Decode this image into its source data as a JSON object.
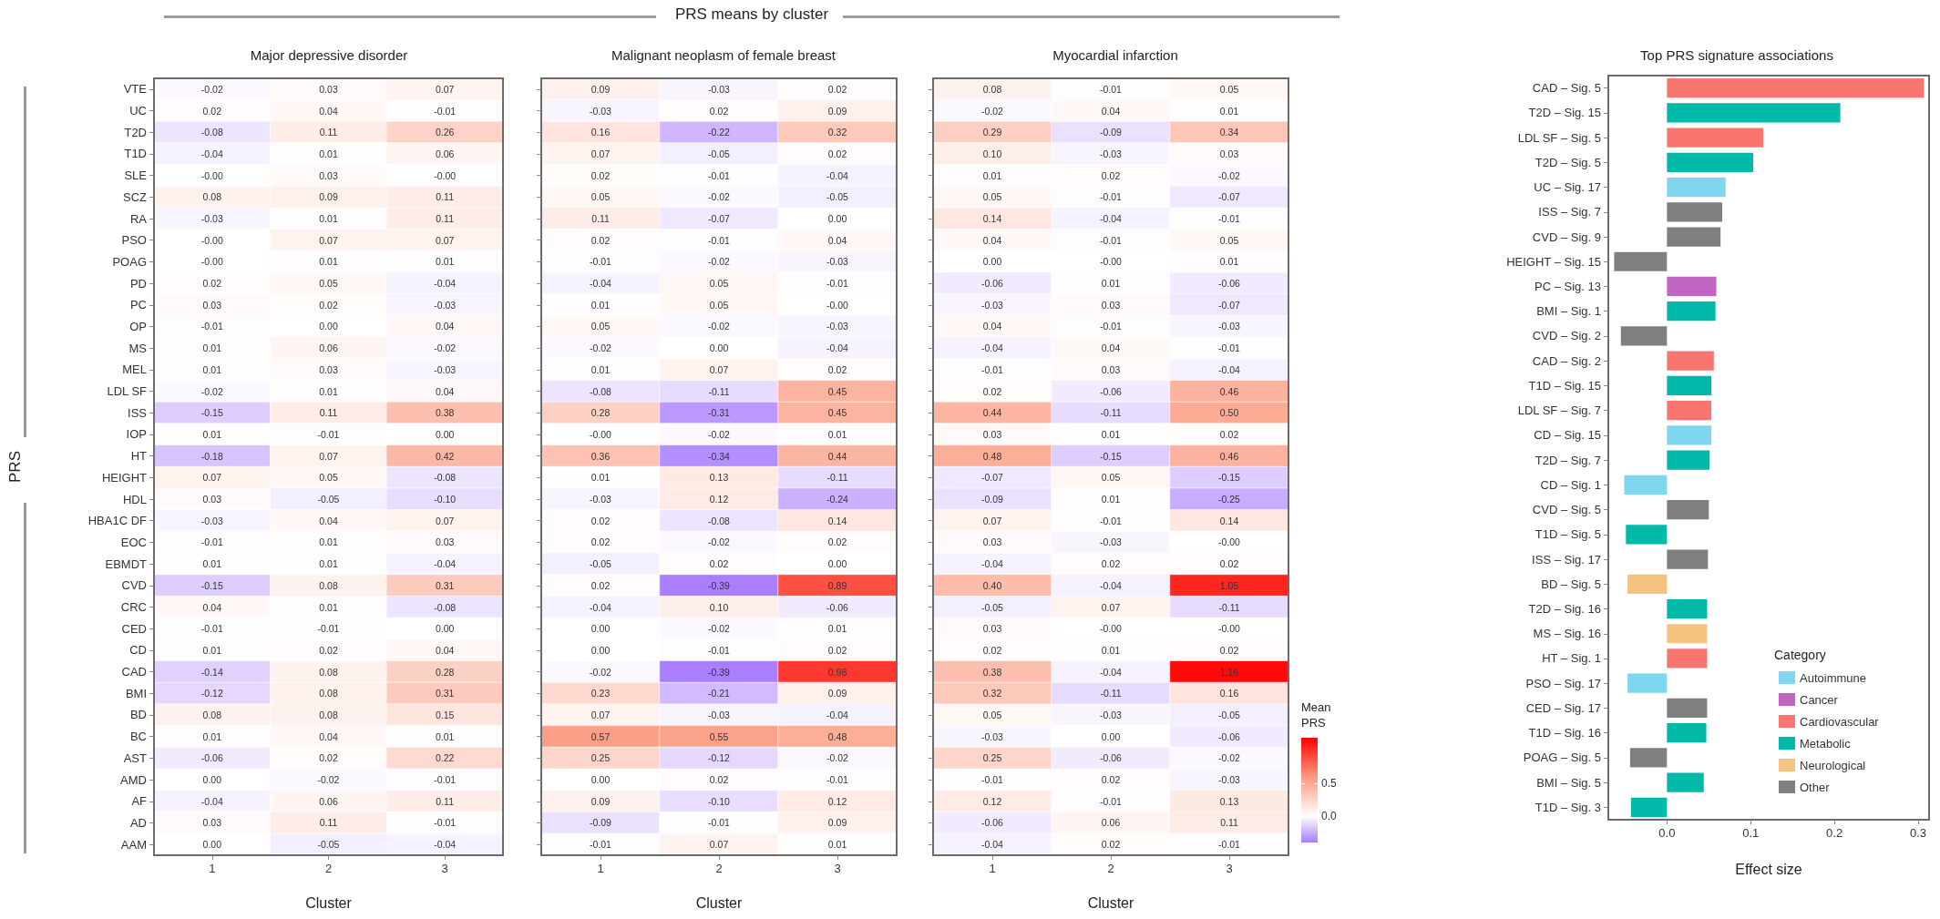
{
  "chart_data": [
    {
      "type": "heatmap",
      "title": "Major depressive disorder",
      "xlabel": "Cluster",
      "ylabel": "PRS",
      "annotations": [
        "PRS means by cluster"
      ],
      "data_labels": true,
      "categories": [
        "1",
        "2",
        "3"
      ],
      "y_categories": [
        "VTE",
        "UC",
        "T2D",
        "T1D",
        "SLE",
        "SCZ",
        "RA",
        "PSO",
        "POAG",
        "PD",
        "PC",
        "OP",
        "MS",
        "MEL",
        "LDL SF",
        "ISS",
        "IOP",
        "HT",
        "HEIGHT",
        "HDL",
        "HBA1C DF",
        "EOC",
        "EBMDT",
        "CVD",
        "CRC",
        "CED",
        "CD",
        "CAD",
        "BMI",
        "BD",
        "BC",
        "AST",
        "AMD",
        "AF",
        "AD",
        "AAM"
      ],
      "cells": [
        [
          -0.02,
          0.03,
          0.07
        ],
        [
          0.02,
          0.04,
          -0.01
        ],
        [
          -0.08,
          0.11,
          0.26
        ],
        [
          -0.04,
          0.01,
          0.06
        ],
        [
          0,
          0.03,
          0
        ],
        [
          0.08,
          0.09,
          0.11
        ],
        [
          -0.03,
          0.01,
          0.11
        ],
        [
          0,
          0.07,
          0.07
        ],
        [
          0,
          0.01,
          0.01
        ],
        [
          0.02,
          0.05,
          -0.04
        ],
        [
          0.03,
          0.02,
          -0.03
        ],
        [
          -0.01,
          0.0,
          0.04
        ],
        [
          0.01,
          0.06,
          -0.02
        ],
        [
          0.01,
          0.03,
          -0.03
        ],
        [
          -0.02,
          0.01,
          0.04
        ],
        [
          -0.15,
          0.11,
          0.38
        ],
        [
          0.01,
          -0.01,
          0.0
        ],
        [
          -0.18,
          0.07,
          0.42
        ],
        [
          0.07,
          0.05,
          -0.08
        ],
        [
          0.03,
          -0.05,
          -0.1
        ],
        [
          -0.03,
          0.04,
          0.07
        ],
        [
          -0.01,
          0.01,
          0.03
        ],
        [
          0.01,
          0.01,
          -0.04
        ],
        [
          -0.15,
          0.08,
          0.31
        ],
        [
          0.04,
          0.01,
          -0.08
        ],
        [
          -0.01,
          -0.01,
          0.0
        ],
        [
          0.01,
          0.02,
          0.04
        ],
        [
          -0.14,
          0.08,
          0.28
        ],
        [
          -0.12,
          0.08,
          0.31
        ],
        [
          0.08,
          0.08,
          0.15
        ],
        [
          0.01,
          0.04,
          0.01
        ],
        [
          -0.06,
          0.02,
          0.22
        ],
        [
          0.0,
          -0.02,
          -0.01
        ],
        [
          -0.04,
          0.06,
          0.11
        ],
        [
          0.03,
          0.11,
          -0.01
        ],
        [
          0.0,
          -0.05,
          -0.04
        ]
      ],
      "cell_labels": [
        [
          "-0.02",
          "0.03",
          "0.07"
        ],
        [
          "0.02",
          "0.04",
          "-0.01"
        ],
        [
          "-0.08",
          "0.11",
          "0.26"
        ],
        [
          "-0.04",
          "0.01",
          "0.06"
        ],
        [
          "-0.00",
          "0.03",
          "-0.00"
        ],
        [
          "0.08",
          "0.09",
          "0.11"
        ],
        [
          "-0.03",
          "0.01",
          "0.11"
        ],
        [
          "-0.00",
          "0.07",
          "0.07"
        ],
        [
          "-0.00",
          "0.01",
          "0.01"
        ],
        [
          "0.02",
          "0.05",
          "-0.04"
        ],
        [
          "0.03",
          "0.02",
          "-0.03"
        ],
        [
          "-0.01",
          "0.00",
          "0.04"
        ],
        [
          "0.01",
          "0.06",
          "-0.02"
        ],
        [
          "0.01",
          "0.03",
          "-0.03"
        ],
        [
          "-0.02",
          "0.01",
          "0.04"
        ],
        [
          "-0.15",
          "0.11",
          "0.38"
        ],
        [
          "0.01",
          "-0.01",
          "0.00"
        ],
        [
          "-0.18",
          "0.07",
          "0.42"
        ],
        [
          "0.07",
          "0.05",
          "-0.08"
        ],
        [
          "0.03",
          "-0.05",
          "-0.10"
        ],
        [
          "-0.03",
          "0.04",
          "0.07"
        ],
        [
          "-0.01",
          "0.01",
          "0.03"
        ],
        [
          "0.01",
          "0.01",
          "-0.04"
        ],
        [
          "-0.15",
          "0.08",
          "0.31"
        ],
        [
          "0.04",
          "0.01",
          "-0.08"
        ],
        [
          "-0.01",
          "-0.01",
          "0.00"
        ],
        [
          "0.01",
          "0.02",
          "0.04"
        ],
        [
          "-0.14",
          "0.08",
          "0.28"
        ],
        [
          "-0.12",
          "0.08",
          "0.31"
        ],
        [
          "0.08",
          "0.08",
          "0.15"
        ],
        [
          "0.01",
          "0.04",
          "0.01"
        ],
        [
          "-0.06",
          "0.02",
          "0.22"
        ],
        [
          "0.00",
          "-0.02",
          "-0.01"
        ],
        [
          "-0.04",
          "0.06",
          "0.11"
        ],
        [
          "0.03",
          "0.11",
          "-0.01"
        ],
        [
          "0.00",
          "-0.05",
          "-0.04"
        ]
      ]
    },
    {
      "type": "heatmap",
      "title": "Malignant neoplasm of female breast",
      "xlabel": "Cluster",
      "data_labels": true,
      "tick_labels": "x",
      "categories": [
        "1",
        "2",
        "3"
      ],
      "y_categories": [
        "VTE",
        "UC",
        "T2D",
        "T1D",
        "SLE",
        "SCZ",
        "RA",
        "PSO",
        "POAG",
        "PD",
        "PC",
        "OP",
        "MS",
        "MEL",
        "LDL SF",
        "ISS",
        "IOP",
        "HT",
        "HEIGHT",
        "HDL",
        "HBA1C DF",
        "EOC",
        "EBMDT",
        "CVD",
        "CRC",
        "CED",
        "CD",
        "CAD",
        "BMI",
        "BD",
        "BC",
        "AST",
        "AMD",
        "AF",
        "AD",
        "AAM"
      ],
      "cells": [
        [
          0.09,
          -0.03,
          0.02
        ],
        [
          -0.03,
          0.02,
          0.09
        ],
        [
          0.16,
          -0.22,
          0.32
        ],
        [
          0.07,
          -0.05,
          0.02
        ],
        [
          0.02,
          -0.01,
          -0.04
        ],
        [
          0.05,
          -0.02,
          -0.05
        ],
        [
          0.11,
          -0.07,
          0.0
        ],
        [
          0.02,
          -0.01,
          0.04
        ],
        [
          -0.01,
          -0.02,
          -0.03
        ],
        [
          -0.04,
          0.05,
          -0.01
        ],
        [
          0.01,
          0.05,
          0
        ],
        [
          0.05,
          -0.02,
          -0.03
        ],
        [
          -0.02,
          0.0,
          -0.04
        ],
        [
          0.01,
          0.07,
          0.02
        ],
        [
          -0.08,
          -0.11,
          0.45
        ],
        [
          0.28,
          -0.31,
          0.45
        ],
        [
          0,
          -0.02,
          0.01
        ],
        [
          0.36,
          -0.34,
          0.44
        ],
        [
          0.01,
          0.13,
          -0.11
        ],
        [
          -0.03,
          0.12,
          -0.24
        ],
        [
          0.02,
          -0.08,
          0.14
        ],
        [
          0.02,
          -0.02,
          0.02
        ],
        [
          -0.05,
          0.02,
          0.0
        ],
        [
          0.02,
          -0.39,
          0.89
        ],
        [
          -0.04,
          0.1,
          -0.06
        ],
        [
          0.0,
          -0.02,
          0.01
        ],
        [
          0.0,
          -0.01,
          0.02
        ],
        [
          -0.02,
          -0.39,
          0.98
        ],
        [
          0.23,
          -0.21,
          0.09
        ],
        [
          0.07,
          -0.03,
          -0.04
        ],
        [
          0.57,
          0.55,
          0.48
        ],
        [
          0.25,
          -0.12,
          -0.02
        ],
        [
          0.0,
          0.02,
          -0.01
        ],
        [
          0.09,
          -0.1,
          0.12
        ],
        [
          -0.09,
          -0.01,
          0.09
        ],
        [
          -0.01,
          0.07,
          0.01
        ]
      ],
      "cell_labels": [
        [
          "0.09",
          "-0.03",
          "0.02"
        ],
        [
          "-0.03",
          "0.02",
          "0.09"
        ],
        [
          "0.16",
          "-0.22",
          "0.32"
        ],
        [
          "0.07",
          "-0.05",
          "0.02"
        ],
        [
          "0.02",
          "-0.01",
          "-0.04"
        ],
        [
          "0.05",
          "-0.02",
          "-0.05"
        ],
        [
          "0.11",
          "-0.07",
          "0.00"
        ],
        [
          "0.02",
          "-0.01",
          "0.04"
        ],
        [
          "-0.01",
          "-0.02",
          "-0.03"
        ],
        [
          "-0.04",
          "0.05",
          "-0.01"
        ],
        [
          "0.01",
          "0.05",
          "-0.00"
        ],
        [
          "0.05",
          "-0.02",
          "-0.03"
        ],
        [
          "-0.02",
          "0.00",
          "-0.04"
        ],
        [
          "0.01",
          "0.07",
          "0.02"
        ],
        [
          "-0.08",
          "-0.11",
          "0.45"
        ],
        [
          "0.28",
          "-0.31",
          "0.45"
        ],
        [
          "-0.00",
          "-0.02",
          "0.01"
        ],
        [
          "0.36",
          "-0.34",
          "0.44"
        ],
        [
          "0.01",
          "0.13",
          "-0.11"
        ],
        [
          "-0.03",
          "0.12",
          "-0.24"
        ],
        [
          "0.02",
          "-0.08",
          "0.14"
        ],
        [
          "0.02",
          "-0.02",
          "0.02"
        ],
        [
          "-0.05",
          "0.02",
          "0.00"
        ],
        [
          "0.02",
          "-0.39",
          "0.89"
        ],
        [
          "-0.04",
          "0.10",
          "-0.06"
        ],
        [
          "0.00",
          "-0.02",
          "0.01"
        ],
        [
          "0.00",
          "-0.01",
          "0.02"
        ],
        [
          "-0.02",
          "-0.39",
          "0.98"
        ],
        [
          "0.23",
          "-0.21",
          "0.09"
        ],
        [
          "0.07",
          "-0.03",
          "-0.04"
        ],
        [
          "0.57",
          "0.55",
          "0.48"
        ],
        [
          "0.25",
          "-0.12",
          "-0.02"
        ],
        [
          "0.00",
          "0.02",
          "-0.01"
        ],
        [
          "0.09",
          "-0.10",
          "0.12"
        ],
        [
          "-0.09",
          "-0.01",
          "0.09"
        ],
        [
          "-0.01",
          "0.07",
          "0.01"
        ]
      ]
    },
    {
      "type": "heatmap",
      "title": "Myocardial infarction",
      "xlabel": "Cluster",
      "data_labels": true,
      "tick_labels": "x",
      "clabel": "Mean PRS",
      "clim": [
        -0.4,
        1.2
      ],
      "cticks": [
        {
          "value": 0,
          "label": "0.0"
        },
        {
          "value": 0.5,
          "label": "0.5"
        }
      ],
      "categories": [
        "1",
        "2",
        "3"
      ],
      "y_categories": [
        "VTE",
        "UC",
        "T2D",
        "T1D",
        "SLE",
        "SCZ",
        "RA",
        "PSO",
        "POAG",
        "PD",
        "PC",
        "OP",
        "MS",
        "MEL",
        "LDL SF",
        "ISS",
        "IOP",
        "HT",
        "HEIGHT",
        "HDL",
        "HBA1C DF",
        "EOC",
        "EBMDT",
        "CVD",
        "CRC",
        "CED",
        "CD",
        "CAD",
        "BMI",
        "BD",
        "BC",
        "AST",
        "AMD",
        "AF",
        "AD",
        "AAM"
      ],
      "cells": [
        [
          0.08,
          -0.01,
          0.05
        ],
        [
          -0.02,
          0.04,
          0.01
        ],
        [
          0.29,
          -0.09,
          0.34
        ],
        [
          0.1,
          -0.03,
          0.03
        ],
        [
          0.01,
          0.02,
          -0.02
        ],
        [
          0.05,
          -0.01,
          -0.07
        ],
        [
          0.14,
          -0.04,
          -0.01
        ],
        [
          0.04,
          -0.01,
          0.05
        ],
        [
          0.0,
          0,
          0.01
        ],
        [
          -0.06,
          0.01,
          -0.06
        ],
        [
          -0.03,
          0.03,
          -0.07
        ],
        [
          0.04,
          -0.01,
          -0.03
        ],
        [
          -0.04,
          0.04,
          -0.01
        ],
        [
          -0.01,
          0.03,
          -0.04
        ],
        [
          0.02,
          -0.06,
          0.46
        ],
        [
          0.44,
          -0.11,
          0.5
        ],
        [
          0.03,
          0.01,
          0.02
        ],
        [
          0.48,
          -0.15,
          0.46
        ],
        [
          -0.07,
          0.05,
          -0.15
        ],
        [
          -0.09,
          0.01,
          -0.25
        ],
        [
          0.07,
          -0.01,
          0.14
        ],
        [
          0.03,
          -0.03,
          0
        ],
        [
          -0.04,
          0.02,
          0.02
        ],
        [
          0.4,
          -0.04,
          1.05
        ],
        [
          -0.05,
          0.07,
          -0.11
        ],
        [
          0.03,
          0,
          0
        ],
        [
          0.02,
          0.01,
          0.02
        ],
        [
          0.38,
          -0.04,
          1.16
        ],
        [
          0.32,
          -0.11,
          0.16
        ],
        [
          0.05,
          -0.03,
          -0.05
        ],
        [
          -0.03,
          0.0,
          -0.06
        ],
        [
          0.25,
          -0.06,
          -0.02
        ],
        [
          -0.01,
          0.02,
          -0.03
        ],
        [
          0.12,
          -0.01,
          0.13
        ],
        [
          -0.06,
          0.06,
          0.11
        ],
        [
          -0.04,
          0.02,
          -0.01
        ]
      ],
      "cell_labels": [
        [
          "0.08",
          "-0.01",
          "0.05"
        ],
        [
          "-0.02",
          "0.04",
          "0.01"
        ],
        [
          "0.29",
          "-0.09",
          "0.34"
        ],
        [
          "0.10",
          "-0.03",
          "0.03"
        ],
        [
          "0.01",
          "0.02",
          "-0.02"
        ],
        [
          "0.05",
          "-0.01",
          "-0.07"
        ],
        [
          "0.14",
          "-0.04",
          "-0.01"
        ],
        [
          "0.04",
          "-0.01",
          "0.05"
        ],
        [
          "0.00",
          "-0.00",
          "0.01"
        ],
        [
          "-0.06",
          "0.01",
          "-0.06"
        ],
        [
          "-0.03",
          "0.03",
          "-0.07"
        ],
        [
          "0.04",
          "-0.01",
          "-0.03"
        ],
        [
          "-0.04",
          "0.04",
          "-0.01"
        ],
        [
          "-0.01",
          "0.03",
          "-0.04"
        ],
        [
          "0.02",
          "-0.06",
          "0.46"
        ],
        [
          "0.44",
          "-0.11",
          "0.50"
        ],
        [
          "0.03",
          "0.01",
          "0.02"
        ],
        [
          "0.48",
          "-0.15",
          "0.46"
        ],
        [
          "-0.07",
          "0.05",
          "-0.15"
        ],
        [
          "-0.09",
          "0.01",
          "-0.25"
        ],
        [
          "0.07",
          "-0.01",
          "0.14"
        ],
        [
          "0.03",
          "-0.03",
          "-0.00"
        ],
        [
          "-0.04",
          "0.02",
          "0.02"
        ],
        [
          "0.40",
          "-0.04",
          "1.05"
        ],
        [
          "-0.05",
          "0.07",
          "-0.11"
        ],
        [
          "0.03",
          "-0.00",
          "-0.00"
        ],
        [
          "0.02",
          "0.01",
          "0.02"
        ],
        [
          "0.38",
          "-0.04",
          "1.16"
        ],
        [
          "0.32",
          "-0.11",
          "0.16"
        ],
        [
          "0.05",
          "-0.03",
          "-0.05"
        ],
        [
          "-0.03",
          "0.00",
          "-0.06"
        ],
        [
          "0.25",
          "-0.06",
          "-0.02"
        ],
        [
          "-0.01",
          "0.02",
          "-0.03"
        ],
        [
          "0.12",
          "-0.01",
          "0.13"
        ],
        [
          "-0.06",
          "0.06",
          "0.11"
        ],
        [
          "-0.04",
          "0.02",
          "-0.01"
        ]
      ]
    },
    {
      "type": "bar",
      "orientation": "horizontal",
      "title": "Top PRS signature associations",
      "xlabel": "Effect size",
      "legend": "bottom right",
      "legend_title": "Category",
      "categories": [
        "CAD – Sig. 5",
        "T2D – Sig. 15",
        "LDL SF – Sig. 5",
        "T2D – Sig. 5",
        "UC – Sig. 17",
        "ISS – Sig. 7",
        "CVD – Sig. 9",
        "HEIGHT – Sig. 15",
        "PC – Sig. 13",
        "BMI – Sig. 1",
        "CVD – Sig. 2",
        "CAD – Sig. 2",
        "T1D – Sig. 15",
        "LDL SF – Sig. 7",
        "CD – Sig. 15",
        "T2D – Sig. 7",
        "CD – Sig. 1",
        "CVD – Sig. 5",
        "T1D – Sig. 5",
        "ISS – Sig. 17",
        "BD – Sig. 5",
        "T2D – Sig. 16",
        "MS – Sig. 16",
        "HT – Sig. 1",
        "PSO – Sig. 17",
        "CED – Sig. 17",
        "T1D – Sig. 16",
        "POAG – Sig. 5",
        "BMI – Sig. 5",
        "T1D – Sig. 3"
      ],
      "xlim": [
        -0.07,
        0.313
      ],
      "xticks": [
        {
          "value": 0,
          "label": "0.0"
        },
        {
          "value": 0.1,
          "label": "0.1"
        },
        {
          "value": 0.2,
          "label": "0.2"
        },
        {
          "value": 0.3,
          "label": "0.3"
        }
      ],
      "series": [
        {
          "name": "Autoimmune",
          "color": "#7fd6ef",
          "values": [
            null,
            null,
            null,
            null,
            0.07,
            null,
            null,
            null,
            null,
            null,
            null,
            null,
            null,
            null,
            0.053,
            null,
            -0.051,
            null,
            null,
            null,
            null,
            null,
            null,
            null,
            -0.047,
            null,
            null,
            null,
            null,
            null
          ]
        },
        {
          "name": "Cancer",
          "color": "#c066c0",
          "values": [
            null,
            null,
            null,
            null,
            null,
            null,
            null,
            null,
            0.059,
            null,
            null,
            null,
            null,
            null,
            null,
            null,
            null,
            null,
            null,
            null,
            null,
            null,
            null,
            null,
            null,
            null,
            null,
            null,
            null,
            null
          ]
        },
        {
          "name": "Cardiovascular",
          "color": "#f87570",
          "values": [
            0.307,
            null,
            0.115,
            null,
            null,
            null,
            null,
            null,
            null,
            null,
            null,
            0.056,
            null,
            0.053,
            null,
            null,
            null,
            null,
            null,
            null,
            null,
            null,
            null,
            0.048,
            null,
            null,
            null,
            null,
            null,
            null
          ]
        },
        {
          "name": "Metabolic",
          "color": "#00b9a8",
          "values": [
            null,
            0.207,
            null,
            0.103,
            null,
            null,
            null,
            null,
            null,
            0.058,
            null,
            null,
            0.053,
            null,
            null,
            0.051,
            null,
            null,
            -0.049,
            null,
            null,
            0.048,
            null,
            null,
            null,
            null,
            0.047,
            null,
            0.044,
            -0.043
          ]
        },
        {
          "name": "Neurological",
          "color": "#f5c27f",
          "values": [
            null,
            null,
            null,
            null,
            null,
            null,
            null,
            null,
            null,
            null,
            null,
            null,
            null,
            null,
            null,
            null,
            null,
            null,
            null,
            null,
            -0.047,
            null,
            0.048,
            null,
            null,
            null,
            null,
            null,
            null,
            null
          ]
        },
        {
          "name": "Other",
          "color": "#7f7f80",
          "values": [
            null,
            null,
            null,
            null,
            null,
            0.066,
            0.064,
            -0.063,
            null,
            null,
            -0.055,
            null,
            null,
            null,
            null,
            null,
            null,
            0.05,
            null,
            0.049,
            null,
            null,
            null,
            null,
            null,
            0.048,
            null,
            -0.044,
            null,
            null
          ]
        }
      ]
    }
  ]
}
